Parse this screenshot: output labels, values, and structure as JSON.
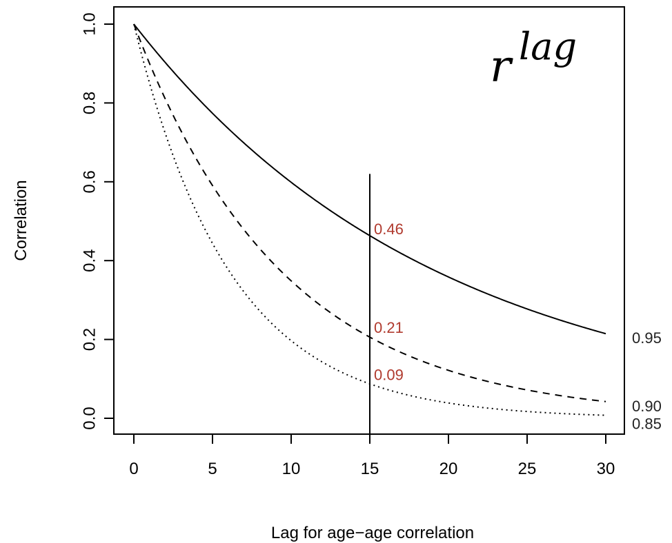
{
  "chart_data": {
    "type": "line",
    "formula": {
      "base": "r",
      "exponent": "lag"
    },
    "xlabel": "Lag for age−age correlation",
    "ylabel": "Correlation",
    "xlim": [
      0,
      30
    ],
    "ylim": [
      0,
      1
    ],
    "x_ticks": [
      0,
      5,
      10,
      15,
      20,
      25,
      30
    ],
    "x_tick_labels": [
      "0",
      "5",
      "10",
      "15",
      "20",
      "25",
      "30"
    ],
    "y_ticks": [
      0,
      0.2,
      0.4,
      0.6,
      0.8,
      1.0
    ],
    "y_tick_labels": [
      "0.0",
      "0.2",
      "0.4",
      "0.6",
      "0.8",
      "1.0"
    ],
    "series": [
      {
        "name": "0.95",
        "r": 0.95,
        "line_style": "solid"
      },
      {
        "name": "0.90",
        "r": 0.9,
        "line_style": "dashed"
      },
      {
        "name": "0.85",
        "r": 0.85,
        "line_style": "dotted"
      }
    ],
    "reference_line": {
      "x": 15,
      "y_top": 0.62
    },
    "annotations": [
      {
        "text": "0.46",
        "x": 15,
        "y": 0.46,
        "color": "#b03a2e"
      },
      {
        "text": "0.21",
        "x": 15,
        "y": 0.21,
        "color": "#b03a2e"
      },
      {
        "text": "0.09",
        "x": 15,
        "y": 0.09,
        "color": "#b03a2e"
      }
    ],
    "grid": false,
    "legend": "none"
  }
}
